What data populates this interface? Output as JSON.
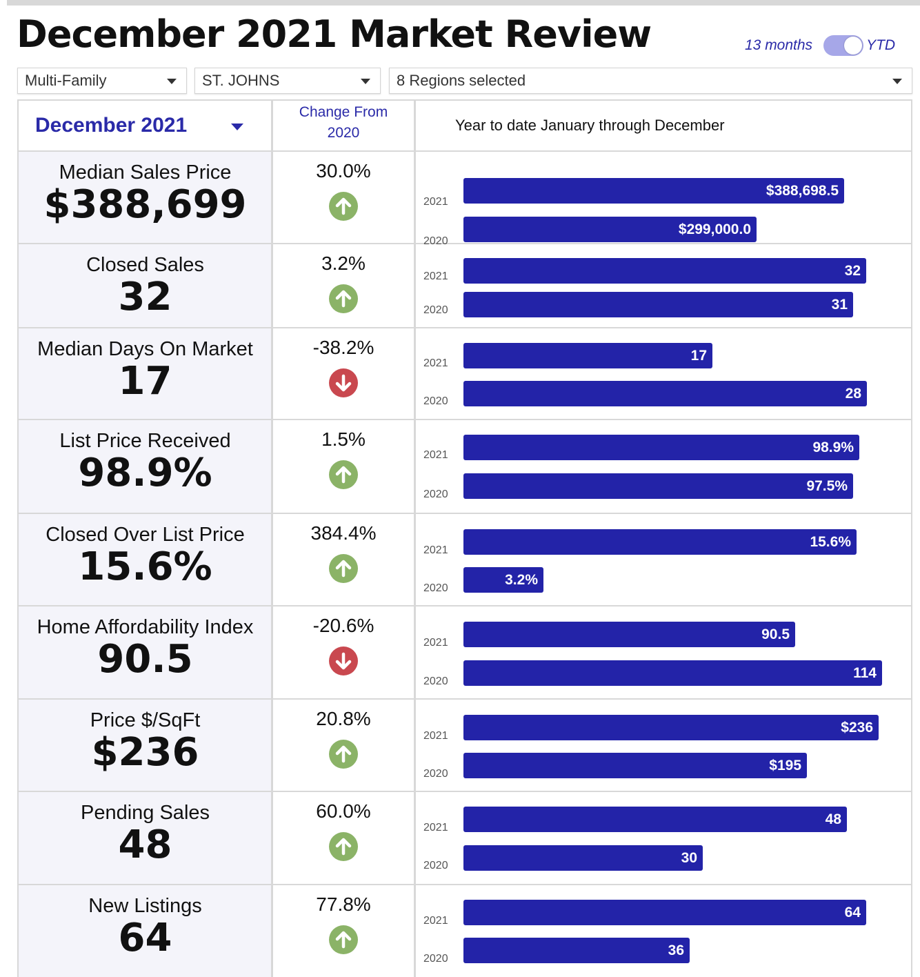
{
  "header": {
    "title": "December 2021 Market Review",
    "toggle_left": "13 months",
    "toggle_right": "YTD"
  },
  "filters": {
    "property_type": "Multi-Family",
    "county": "ST. JOHNS",
    "regions": "8 Regions selected"
  },
  "table": {
    "month": "December 2021",
    "change_from_label": "Change From",
    "change_from_year": "2020",
    "ytd_label": "Year to date January through December",
    "year_current": "2021",
    "year_prior": "2020"
  },
  "colors": {
    "accent": "#2a2aa8",
    "bar": "#2323a8",
    "up": "#8bb367",
    "down": "#c9484f"
  },
  "chart_data": {
    "type": "bar",
    "orientation": "horizontal",
    "series": [
      {
        "name": "2021"
      },
      {
        "name": "2020"
      }
    ],
    "metrics": [
      {
        "label": "Median Sales Price",
        "value": "$388,699",
        "change": "30.0%",
        "direction": "up",
        "v2021": 388698.5,
        "v2020": 299000.0,
        "l2021": "$388,698.5",
        "l2020": "$299,000.0"
      },
      {
        "label": "Closed Sales",
        "value": "32",
        "change": "3.2%",
        "direction": "up",
        "v2021": 32,
        "v2020": 31,
        "l2021": "32",
        "l2020": "31"
      },
      {
        "label": "Median Days On Market",
        "value": "17",
        "change": "-38.2%",
        "direction": "down",
        "v2021": 17,
        "v2020": 28,
        "l2021": "17",
        "l2020": "28"
      },
      {
        "label": "List Price Received",
        "value": "98.9%",
        "change": "1.5%",
        "direction": "up",
        "v2021": 98.9,
        "v2020": 97.5,
        "l2021": "98.9%",
        "l2020": "97.5%"
      },
      {
        "label": "Closed Over List Price",
        "value": "15.6%",
        "change": "384.4%",
        "direction": "up",
        "v2021": 15.6,
        "v2020": 3.2,
        "l2021": "15.6%",
        "l2020": "3.2%"
      },
      {
        "label": "Home Affordability Index",
        "value": "90.5",
        "change": "-20.6%",
        "direction": "down",
        "v2021": 90.5,
        "v2020": 114,
        "l2021": "90.5",
        "l2020": "114"
      },
      {
        "label": "Price $/SqFt",
        "value": "$236",
        "change": "20.8%",
        "direction": "up",
        "v2021": 236,
        "v2020": 195,
        "l2021": "$236",
        "l2020": "$195"
      },
      {
        "label": "Pending Sales",
        "value": "48",
        "change": "60.0%",
        "direction": "up",
        "v2021": 48,
        "v2020": 30,
        "l2021": "48",
        "l2020": "30"
      },
      {
        "label": "New Listings",
        "value": "64",
        "change": "77.8%",
        "direction": "up",
        "v2021": 64,
        "v2020": 36,
        "l2021": "64",
        "l2020": "36"
      }
    ]
  }
}
